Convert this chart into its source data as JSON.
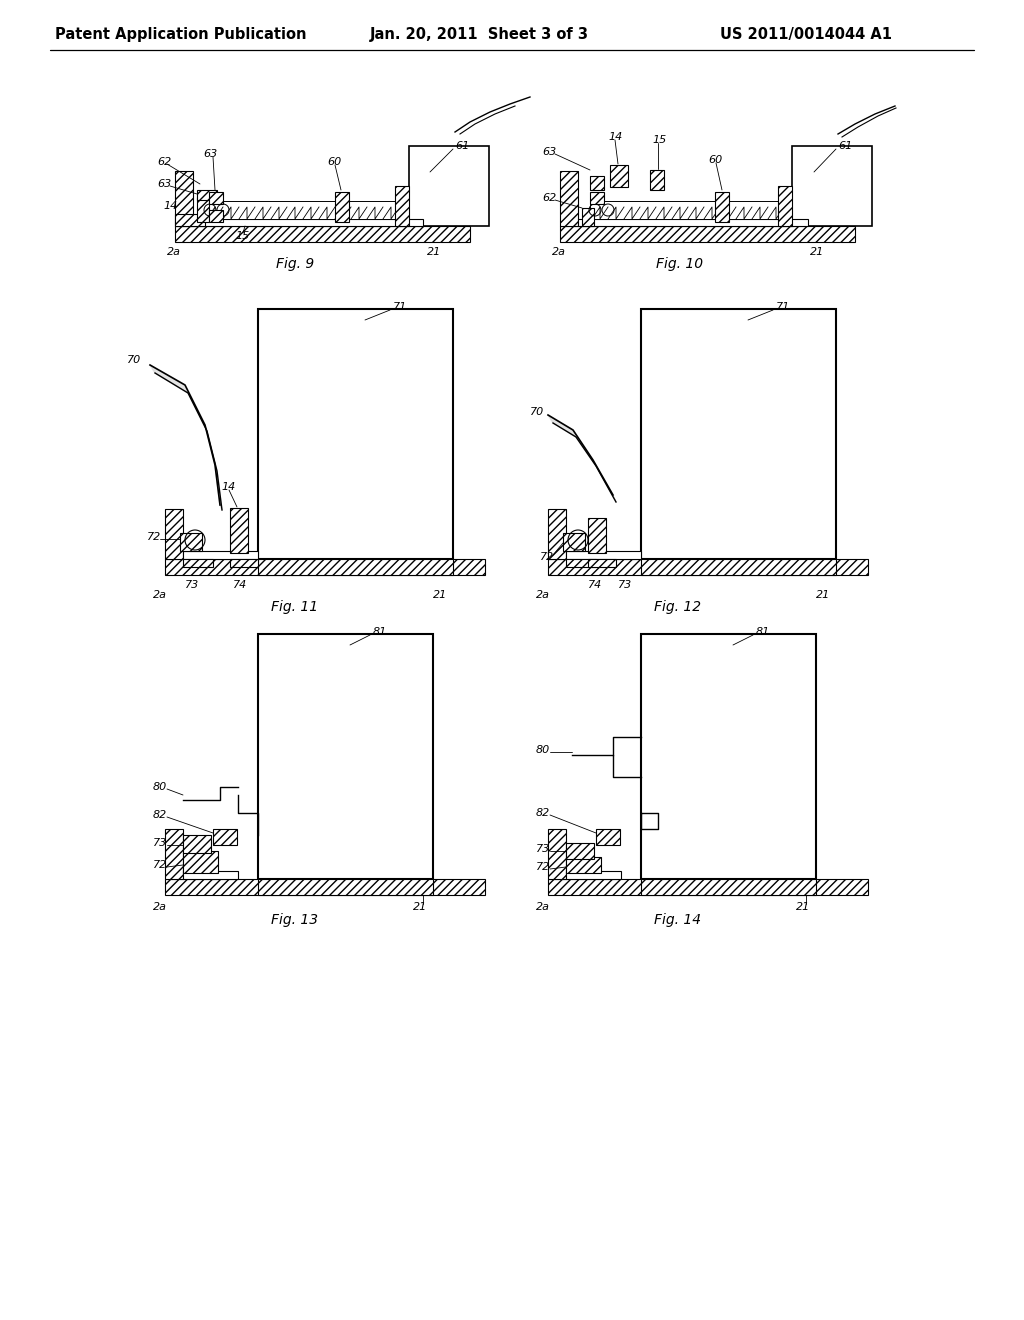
{
  "background_color": "#ffffff",
  "header_left": "Patent Application Publication",
  "header_center": "Jan. 20, 2011  Sheet 3 of 3",
  "header_right": "US 2011/0014044 A1",
  "header_fontsize": 10.5,
  "fig_titles": [
    "Fig. 9",
    "Fig. 10",
    "Fig. 11",
    "Fig. 12",
    "Fig. 13",
    "Fig. 14"
  ]
}
